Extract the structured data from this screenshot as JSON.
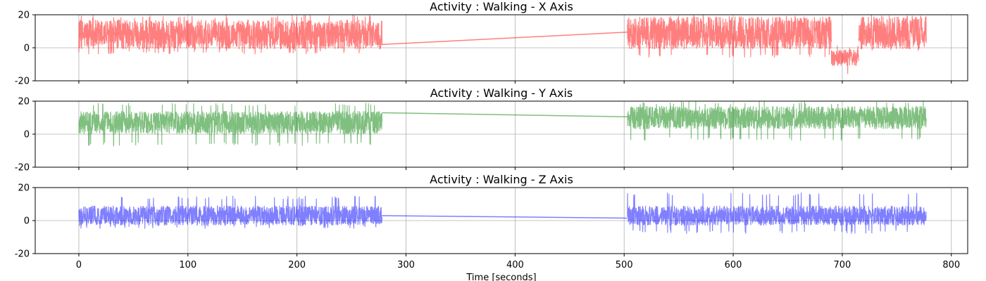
{
  "chart_data": [
    {
      "type": "line",
      "title": "Activity : Walking - X Axis",
      "color": "#ff0000",
      "xlim": [
        -40,
        815
      ],
      "ylim": [
        -20,
        20
      ],
      "yticks": [
        -20,
        0,
        20
      ],
      "xticks": [
        0,
        100,
        200,
        300,
        400,
        500,
        600,
        700,
        800
      ],
      "show_xtick_labels": false,
      "xlabel": "",
      "grid": true,
      "segments": [
        {
          "x_start": 0,
          "x_end": 278,
          "baseline": 8,
          "amplitude": 9,
          "min": -4,
          "max": 20
        },
        {
          "x_start": 503,
          "x_end": 690,
          "baseline": 9,
          "amplitude": 10,
          "min": -6,
          "max": 20
        },
        {
          "x_start": 690,
          "x_end": 715,
          "baseline": -6,
          "amplitude": 5,
          "min": -16,
          "max": 2
        },
        {
          "x_start": 715,
          "x_end": 777,
          "baseline": 9,
          "amplitude": 10,
          "min": -2,
          "max": 20
        }
      ],
      "gap_line": {
        "x": [
          278,
          503
        ],
        "y": [
          2,
          9.5
        ]
      }
    },
    {
      "type": "line",
      "title": "Activity : Walking - Y Axis",
      "color": "#008000",
      "xlim": [
        -40,
        815
      ],
      "ylim": [
        -20,
        20
      ],
      "yticks": [
        -20,
        0,
        20
      ],
      "xticks": [
        0,
        100,
        200,
        300,
        400,
        500,
        600,
        700,
        800
      ],
      "show_xtick_labels": false,
      "xlabel": "",
      "grid": true,
      "segments": [
        {
          "x_start": 0,
          "x_end": 278,
          "baseline": 7,
          "amplitude": 7,
          "min": -7,
          "max": 19
        },
        {
          "x_start": 503,
          "x_end": 777,
          "baseline": 10,
          "amplitude": 7,
          "min": -4,
          "max": 20
        }
      ],
      "gap_line": {
        "x": [
          278,
          503
        ],
        "y": [
          13,
          10.5
        ]
      }
    },
    {
      "type": "line",
      "title": "Activity : Walking - Z Axis",
      "color": "#0000ff",
      "xlim": [
        -40,
        815
      ],
      "ylim": [
        -20,
        20
      ],
      "yticks": [
        -20,
        0,
        20
      ],
      "xticks": [
        0,
        100,
        200,
        300,
        400,
        500,
        600,
        700,
        800
      ],
      "show_xtick_labels": true,
      "xlabel": "Time [seconds]",
      "grid": true,
      "segments": [
        {
          "x_start": 0,
          "x_end": 278,
          "baseline": 3,
          "amplitude": 6,
          "min": -5,
          "max": 15
        },
        {
          "x_start": 503,
          "x_end": 777,
          "baseline": 3,
          "amplitude": 6,
          "min": -8,
          "max": 17
        }
      ],
      "gap_line": {
        "x": [
          278,
          503
        ],
        "y": [
          3,
          1.5
        ]
      }
    }
  ]
}
